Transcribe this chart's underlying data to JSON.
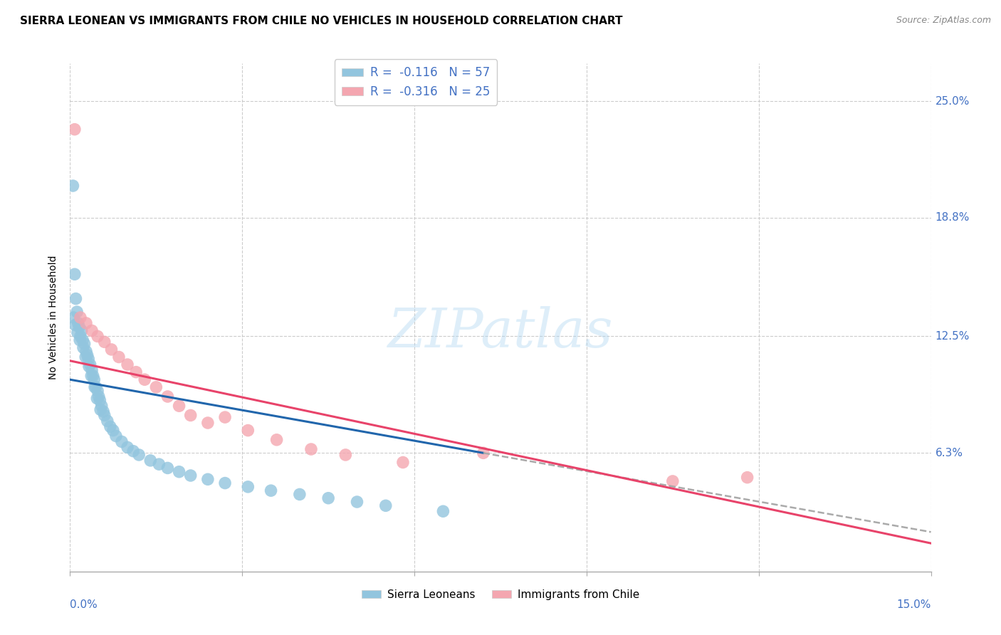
{
  "title": "SIERRA LEONEAN VS IMMIGRANTS FROM CHILE NO VEHICLES IN HOUSEHOLD CORRELATION CHART",
  "source": "Source: ZipAtlas.com",
  "ylabel": "No Vehicles in Household",
  "ytick_values": [
    6.3,
    12.5,
    18.8,
    25.0
  ],
  "ytick_labels": [
    "6.3%",
    "12.5%",
    "18.8%",
    "25.0%"
  ],
  "xlim": [
    0.0,
    15.0
  ],
  "ylim": [
    0.0,
    27.0
  ],
  "sl_color": "#92c5de",
  "chile_color": "#f4a6b0",
  "sl_line_color": "#2166ac",
  "chile_line_color": "#e8436a",
  "dashed_line_color": "#aaaaaa",
  "background_color": "#ffffff",
  "sl_x": [
    0.05,
    0.08,
    0.1,
    0.12,
    0.14,
    0.16,
    0.18,
    0.2,
    0.22,
    0.25,
    0.28,
    0.3,
    0.32,
    0.35,
    0.38,
    0.4,
    0.42,
    0.45,
    0.48,
    0.5,
    0.52,
    0.55,
    0.58,
    0.6,
    0.65,
    0.7,
    0.75,
    0.8,
    0.9,
    1.0,
    1.1,
    1.2,
    1.4,
    1.55,
    1.7,
    1.9,
    2.1,
    2.4,
    2.7,
    3.1,
    3.5,
    4.0,
    4.5,
    5.0,
    5.5,
    6.5,
    0.06,
    0.09,
    0.13,
    0.17,
    0.23,
    0.27,
    0.33,
    0.37,
    0.43,
    0.47,
    0.53
  ],
  "sl_y": [
    20.5,
    15.8,
    14.5,
    13.8,
    13.2,
    13.0,
    12.5,
    12.8,
    12.3,
    12.1,
    11.7,
    11.5,
    11.3,
    11.0,
    10.7,
    10.4,
    10.2,
    9.8,
    9.6,
    9.3,
    9.1,
    8.8,
    8.5,
    8.3,
    8.0,
    7.7,
    7.5,
    7.2,
    6.9,
    6.6,
    6.4,
    6.2,
    5.9,
    5.7,
    5.5,
    5.3,
    5.1,
    4.9,
    4.7,
    4.5,
    4.3,
    4.1,
    3.9,
    3.7,
    3.5,
    3.2,
    13.5,
    13.1,
    12.7,
    12.3,
    11.9,
    11.4,
    10.9,
    10.4,
    9.8,
    9.2,
    8.6
  ],
  "ch_x": [
    0.08,
    0.18,
    0.28,
    0.38,
    0.48,
    0.6,
    0.72,
    0.85,
    1.0,
    1.15,
    1.3,
    1.5,
    1.7,
    1.9,
    2.1,
    2.4,
    2.7,
    3.1,
    3.6,
    4.2,
    4.8,
    5.8,
    7.2,
    10.5,
    11.8
  ],
  "ch_y": [
    23.5,
    13.5,
    13.2,
    12.8,
    12.5,
    12.2,
    11.8,
    11.4,
    11.0,
    10.6,
    10.2,
    9.8,
    9.3,
    8.8,
    8.3,
    7.9,
    8.2,
    7.5,
    7.0,
    6.5,
    6.2,
    5.8,
    6.3,
    4.8,
    5.0
  ],
  "sl_line_x0": 0.0,
  "sl_line_y0": 10.2,
  "sl_line_x1": 7.2,
  "sl_line_y1": 6.3,
  "sl_dash_x0": 7.2,
  "sl_dash_y0": 6.3,
  "sl_dash_x1": 15.0,
  "sl_dash_y1": 2.1,
  "ch_line_x0": 0.0,
  "ch_line_y0": 11.2,
  "ch_line_x1": 15.0,
  "ch_line_y1": 1.5
}
